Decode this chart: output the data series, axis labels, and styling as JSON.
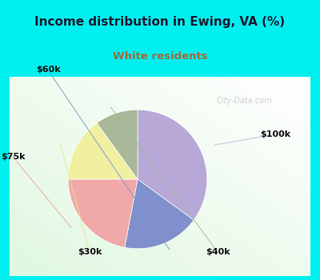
{
  "title": "Income distribution in Ewing, VA (%)",
  "subtitle": "White residents",
  "title_color": "#1a1a2e",
  "subtitle_color": "#9b6b3a",
  "background_cyan": "#00f0f0",
  "background_chart": "#e8f5ea",
  "slices": [
    {
      "label": "$100k",
      "value": 35,
      "color": "#b8a8d8"
    },
    {
      "label": "$60k",
      "value": 18,
      "color": "#8090cc"
    },
    {
      "label": "$75k",
      "value": 22,
      "color": "#f0a8a8"
    },
    {
      "label": "$30k",
      "value": 15,
      "color": "#f0f0a0"
    },
    {
      "label": "$40k",
      "value": 10,
      "color": "#a8b898"
    }
  ],
  "startangle": 90,
  "watermark": "City-Data.com"
}
